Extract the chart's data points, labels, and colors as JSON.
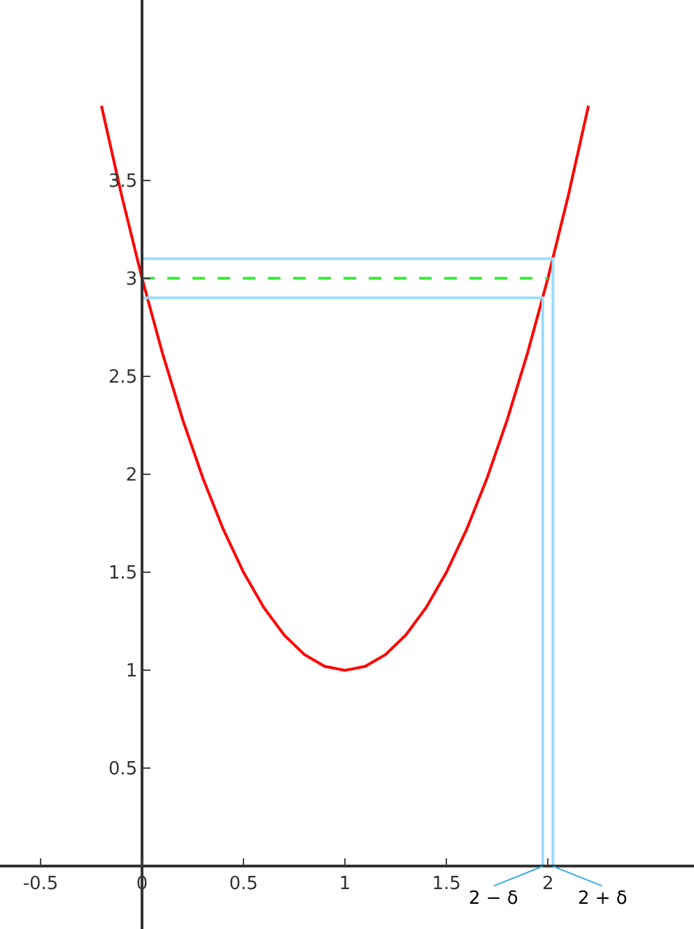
{
  "chart_data": {
    "type": "line",
    "series": [
      {
        "color": "#ff0000",
        "x": [
          -0.2,
          -0.1,
          0,
          0.1,
          0.2,
          0.3,
          0.4,
          0.5,
          0.6,
          0.7,
          0.8,
          0.9,
          1,
          1.1,
          1.2,
          1.3,
          1.4,
          1.5,
          1.6,
          1.7,
          1.8,
          1.9,
          2,
          2.1,
          2.2
        ],
        "values": [
          3.88,
          3.42,
          3,
          2.62,
          2.28,
          1.98,
          1.72,
          1.5,
          1.32,
          1.18,
          1.08,
          1.02,
          1,
          1.02,
          1.08,
          1.18,
          1.32,
          1.5,
          1.72,
          1.98,
          2.28,
          2.62,
          3,
          3.42,
          3.88
        ]
      },
      {
        "color": "#99ddff",
        "x": [
          0,
          2.025,
          2.025
        ],
        "values": [
          3.1,
          3.1,
          0
        ]
      },
      {
        "color": "#99ddff",
        "x": [
          0,
          1.975,
          1.975
        ],
        "values": [
          2.9,
          2.9,
          0
        ]
      },
      {
        "color": "#33ee33",
        "x": [
          0,
          2
        ],
        "values": [
          3,
          3
        ],
        "line_style": "dashed"
      }
    ],
    "annotations": [
      {
        "text": "2 − δ",
        "x": 1.975,
        "y": 0
      },
      {
        "text": "2 + δ",
        "x": 2.025,
        "y": 0
      }
    ],
    "xlim": [
      -0.7,
      2.72
    ],
    "ylim": [
      -0.32,
      4.42
    ],
    "xticks": [
      -0.5,
      0,
      0.5,
      1,
      1.5,
      2
    ],
    "yticks": [
      0.5,
      1,
      1.5,
      2,
      2.5,
      3,
      3.5
    ],
    "marker": "none",
    "line_style": "solid"
  }
}
